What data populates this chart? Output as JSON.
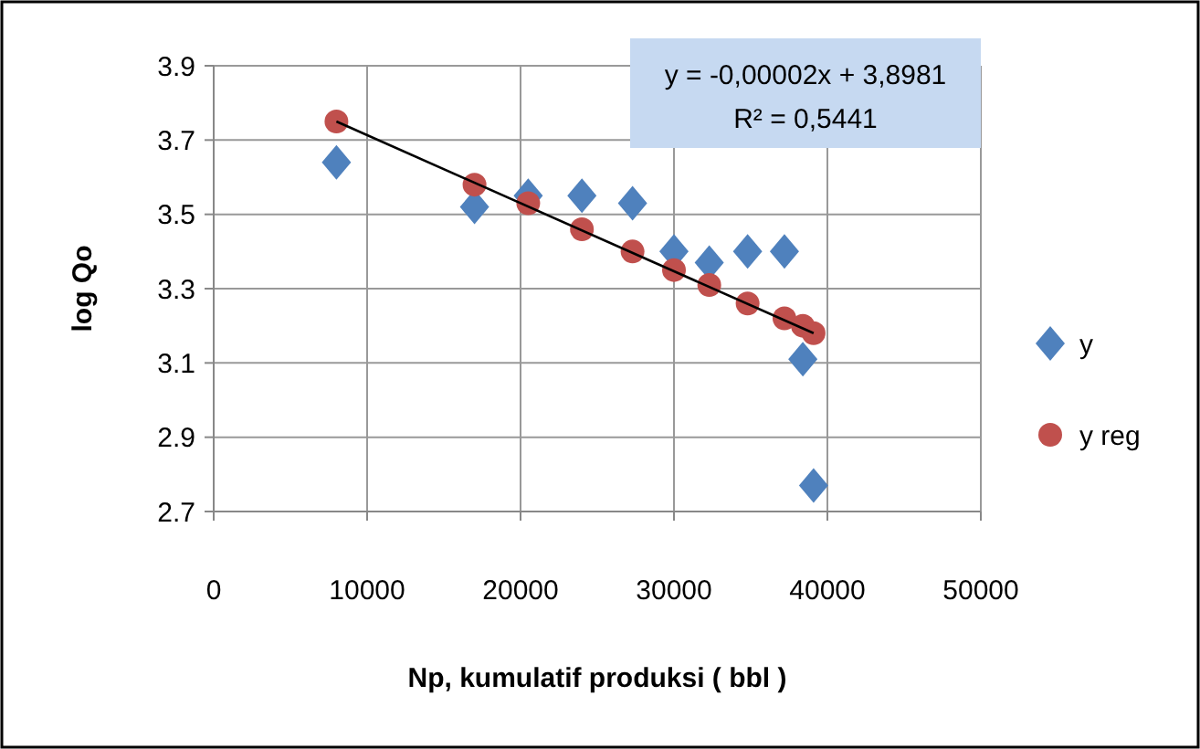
{
  "chart_data": {
    "type": "scatter",
    "xlabel": "Np, kumulatif produksi ( bbl )",
    "ylabel": "log Qo",
    "xlim": [
      0,
      50000
    ],
    "xticks": [
      0,
      10000,
      20000,
      30000,
      40000,
      50000
    ],
    "ylim": [
      2.7,
      3.9
    ],
    "yticks": [
      {
        "value": 2.7,
        "label": "2.7"
      },
      {
        "value": 2.9,
        "label": "2.9"
      },
      {
        "value": 3.1,
        "label": "3.1"
      },
      {
        "value": 3.3,
        "label": "3.3"
      },
      {
        "value": 3.5,
        "label": "3.5"
      },
      {
        "value": 3.7,
        "label": "3.7"
      },
      {
        "value": 3.9,
        "label": "3.9"
      }
    ],
    "grid": true,
    "legend": "right",
    "annotations": [
      "y = -0,00002x + 3,8981",
      "R² = 0,5441"
    ],
    "series": [
      {
        "name": "y",
        "color": "#4f81bd",
        "marker": "diamond",
        "x": [
          8000,
          17000,
          20500,
          24000,
          27300,
          30000,
          32300,
          34800,
          37200,
          38400,
          39100
        ],
        "values": [
          3.64,
          3.52,
          3.55,
          3.55,
          3.53,
          3.4,
          3.37,
          3.4,
          3.4,
          3.11,
          2.77
        ]
      },
      {
        "name": "y reg",
        "color": "#c0504d",
        "marker": "circle",
        "x": [
          8000,
          17000,
          20500,
          24000,
          27300,
          30000,
          32300,
          34800,
          37200,
          38400,
          39100
        ],
        "values": [
          3.75,
          3.58,
          3.53,
          3.46,
          3.4,
          3.35,
          3.31,
          3.26,
          3.22,
          3.2,
          3.18
        ]
      },
      {
        "type": "line",
        "color": "#000000",
        "marker": "none",
        "x": [
          8000,
          39100
        ],
        "values": [
          3.75,
          3.18
        ]
      }
    ]
  }
}
